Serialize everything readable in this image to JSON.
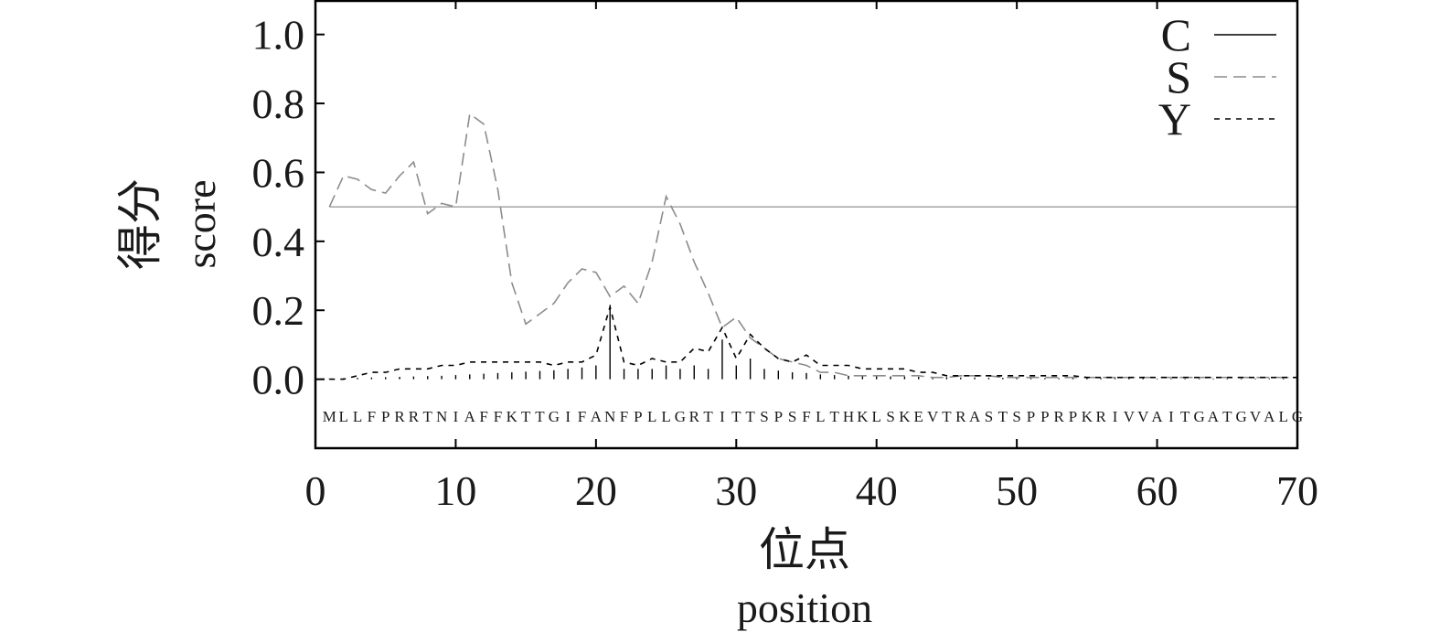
{
  "chart_data": {
    "type": "line",
    "xlabel_cn": "位点",
    "xlabel_en": "position",
    "ylabel_cn": "得分",
    "ylabel_en": "score",
    "xlim": [
      0,
      70
    ],
    "ylim": [
      -0.2,
      1.1
    ],
    "xticks": [
      0,
      10,
      20,
      30,
      40,
      50,
      60,
      70
    ],
    "xtick_labels": [
      "0",
      "10",
      "20",
      "30",
      "40",
      "50",
      "60",
      "70"
    ],
    "yticks": [
      0.0,
      0.2,
      0.4,
      0.6,
      0.8,
      1.0
    ],
    "ytick_labels": [
      "0.0",
      "0.2",
      "0.4",
      "0.6",
      "0.8",
      "1.0"
    ],
    "threshold": 0.5,
    "legend_position": "top-right",
    "sequence": [
      "M",
      "L",
      "L",
      "F",
      "P",
      "R",
      "R",
      "T",
      "N",
      "I",
      "A",
      "F",
      "F",
      "K",
      "T",
      "T",
      "G",
      "I",
      "F",
      "A",
      "N",
      "F",
      "P",
      "L",
      "L",
      "G",
      "R",
      "T",
      "I",
      "T",
      "T",
      "S",
      "P",
      "S",
      "F",
      "L",
      "T",
      "H",
      "K",
      "L",
      "S",
      "K",
      "E",
      "V",
      "T",
      "R",
      "A",
      "S",
      "T",
      "S",
      "P",
      "P",
      "R",
      "P",
      "K",
      "R",
      "I",
      "V",
      "V",
      "A",
      "I",
      "T",
      "G",
      "A",
      "T",
      "G",
      "V",
      "A",
      "L",
      "G"
    ],
    "series": [
      {
        "name": "C",
        "style": "solid-stems",
        "color": "#000000",
        "x": [
          1,
          2,
          3,
          4,
          5,
          6,
          7,
          8,
          9,
          10,
          11,
          12,
          13,
          14,
          15,
          16,
          17,
          18,
          19,
          20,
          21,
          22,
          23,
          24,
          25,
          26,
          27,
          28,
          29,
          30,
          31,
          32,
          33,
          34,
          35,
          36,
          37,
          38,
          39,
          40,
          41,
          42,
          43,
          44,
          45,
          46,
          47,
          48,
          49,
          50,
          51,
          52,
          53,
          54,
          55,
          56,
          57,
          58,
          59,
          60,
          61,
          62,
          63,
          64,
          65,
          66,
          67,
          68,
          69,
          70
        ],
        "values": [
          0.002,
          0.003,
          0.004,
          0.005,
          0.006,
          0.007,
          0.008,
          0.009,
          0.01,
          0.012,
          0.014,
          0.016,
          0.018,
          0.02,
          0.022,
          0.024,
          0.026,
          0.03,
          0.034,
          0.04,
          0.215,
          0.03,
          0.03,
          0.03,
          0.04,
          0.03,
          0.04,
          0.03,
          0.115,
          0.04,
          0.06,
          0.03,
          0.025,
          0.02,
          0.018,
          0.014,
          0.012,
          0.01,
          0.01,
          0.01,
          0.008,
          0.008,
          0.007,
          0.006,
          0.006,
          0.005,
          0.005,
          0.004,
          0.004,
          0.004,
          0.004,
          0.003,
          0.003,
          0.003,
          0.003,
          0.003,
          0.003,
          0.003,
          0.003,
          0.002,
          0.002,
          0.002,
          0.002,
          0.002,
          0.002,
          0.002,
          0.002,
          0.002,
          0.002,
          0.002
        ]
      },
      {
        "name": "S",
        "style": "long-dash",
        "color": "#8c8c8c",
        "x": [
          1,
          2,
          3,
          4,
          5,
          6,
          7,
          8,
          9,
          10,
          11,
          12,
          13,
          14,
          15,
          16,
          17,
          18,
          19,
          20,
          21,
          22,
          23,
          24,
          25,
          26,
          27,
          28,
          29,
          30,
          31,
          32,
          33,
          34,
          35,
          36,
          37,
          38,
          39,
          40,
          41,
          42,
          43,
          44,
          45,
          46,
          47,
          48,
          49,
          50,
          51,
          52,
          53,
          54,
          55,
          56,
          57,
          58,
          59,
          60,
          61,
          62,
          63,
          64,
          65,
          66,
          67,
          68,
          69,
          70
        ],
        "values": [
          0.5,
          0.59,
          0.58,
          0.55,
          0.54,
          0.59,
          0.63,
          0.48,
          0.51,
          0.5,
          0.77,
          0.74,
          0.55,
          0.28,
          0.16,
          0.19,
          0.22,
          0.28,
          0.32,
          0.31,
          0.24,
          0.27,
          0.22,
          0.34,
          0.53,
          0.45,
          0.34,
          0.25,
          0.15,
          0.18,
          0.12,
          0.09,
          0.06,
          0.05,
          0.04,
          0.02,
          0.02,
          0.01,
          0.01,
          0.01,
          0.01,
          0.01,
          0.01,
          0.005,
          0.005,
          0.01,
          0.01,
          0.01,
          0.005,
          0.005,
          0.005,
          0.005,
          0.005,
          0.005,
          0.005,
          0.005,
          0.005,
          0.005,
          0.005,
          0.005,
          0.005,
          0.005,
          0.005,
          0.005,
          0.005,
          0.005,
          0.005,
          0.005,
          0.005,
          0.005
        ]
      },
      {
        "name": "Y",
        "style": "short-dash",
        "color": "#000000",
        "x": [
          1,
          2,
          3,
          4,
          5,
          6,
          7,
          8,
          9,
          10,
          11,
          12,
          13,
          14,
          15,
          16,
          17,
          18,
          19,
          20,
          21,
          22,
          23,
          24,
          25,
          26,
          27,
          28,
          29,
          30,
          31,
          32,
          33,
          34,
          35,
          36,
          37,
          38,
          39,
          40,
          41,
          42,
          43,
          44,
          45,
          46,
          47,
          48,
          49,
          50,
          51,
          52,
          53,
          54,
          55,
          56,
          57,
          58,
          59,
          60,
          61,
          62,
          63,
          64,
          65,
          66,
          67,
          68,
          69,
          70
        ],
        "values": [
          0.0,
          0.0,
          0.01,
          0.02,
          0.02,
          0.03,
          0.03,
          0.03,
          0.04,
          0.04,
          0.05,
          0.05,
          0.05,
          0.05,
          0.05,
          0.05,
          0.04,
          0.05,
          0.05,
          0.07,
          0.21,
          0.05,
          0.04,
          0.06,
          0.05,
          0.05,
          0.09,
          0.08,
          0.15,
          0.06,
          0.13,
          0.09,
          0.06,
          0.05,
          0.07,
          0.04,
          0.04,
          0.04,
          0.03,
          0.03,
          0.03,
          0.03,
          0.02,
          0.02,
          0.01,
          0.01,
          0.01,
          0.01,
          0.01,
          0.01,
          0.01,
          0.01,
          0.01,
          0.01,
          0.005,
          0.005,
          0.005,
          0.005,
          0.005,
          0.005,
          0.005,
          0.005,
          0.005,
          0.005,
          0.005,
          0.005,
          0.005,
          0.005,
          0.005,
          0.005
        ]
      }
    ]
  }
}
